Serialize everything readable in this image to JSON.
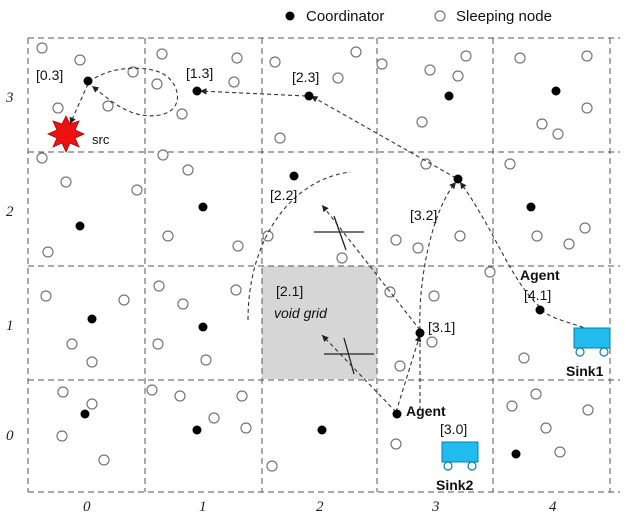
{
  "legend": {
    "coordinator": "Coordinator",
    "sleeping": "Sleeping node"
  },
  "axes": {
    "x": [
      "0",
      "1",
      "2",
      "3",
      "4"
    ],
    "y": [
      "0",
      "1",
      "2",
      "3"
    ]
  },
  "labels": {
    "c03": "[0.3]",
    "c13": "[1.3]",
    "c23": "[2.3]",
    "c22": "[2.2]",
    "c32": "[3.2]",
    "c21": "[2.1]",
    "void": "void grid",
    "c31": "[3.1]",
    "c41": "[4.1]",
    "c30": "[3.0]",
    "agent1": "Agent",
    "agent2": "Agent",
    "src": "src",
    "sink1": "Sink1",
    "sink2": "Sink2"
  },
  "colors": {
    "void_fill": "#d6d6d6",
    "src": "#ee1111",
    "sink": "#22bbee",
    "coordinator": "#000000",
    "sleeping_stroke": "#777777"
  }
}
